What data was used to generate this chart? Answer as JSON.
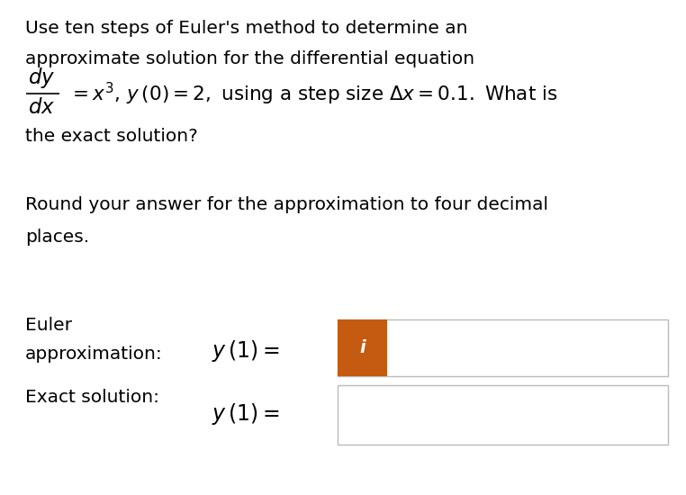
{
  "background_color": "#ffffff",
  "text_color": "#000000",
  "orange_color": "#c55a11",
  "box_border_color": "#bbbbbb",
  "line1": "Use ten steps of Euler's method to determine an",
  "line2": "approximate solution for the differential equation",
  "line4": "the exact solution?",
  "line5": "Round your answer for the approximation to four decimal",
  "line6": "places.",
  "label1": "Euler",
  "label1b": "approximation:",
  "label2": "Exact solution:",
  "info_icon": "i",
  "figsize": [
    7.62,
    5.5
  ],
  "dpi": 100,
  "fs_main": 14.5,
  "fs_math": 15.5,
  "fs_label": 14.5,
  "fs_eq": 16
}
